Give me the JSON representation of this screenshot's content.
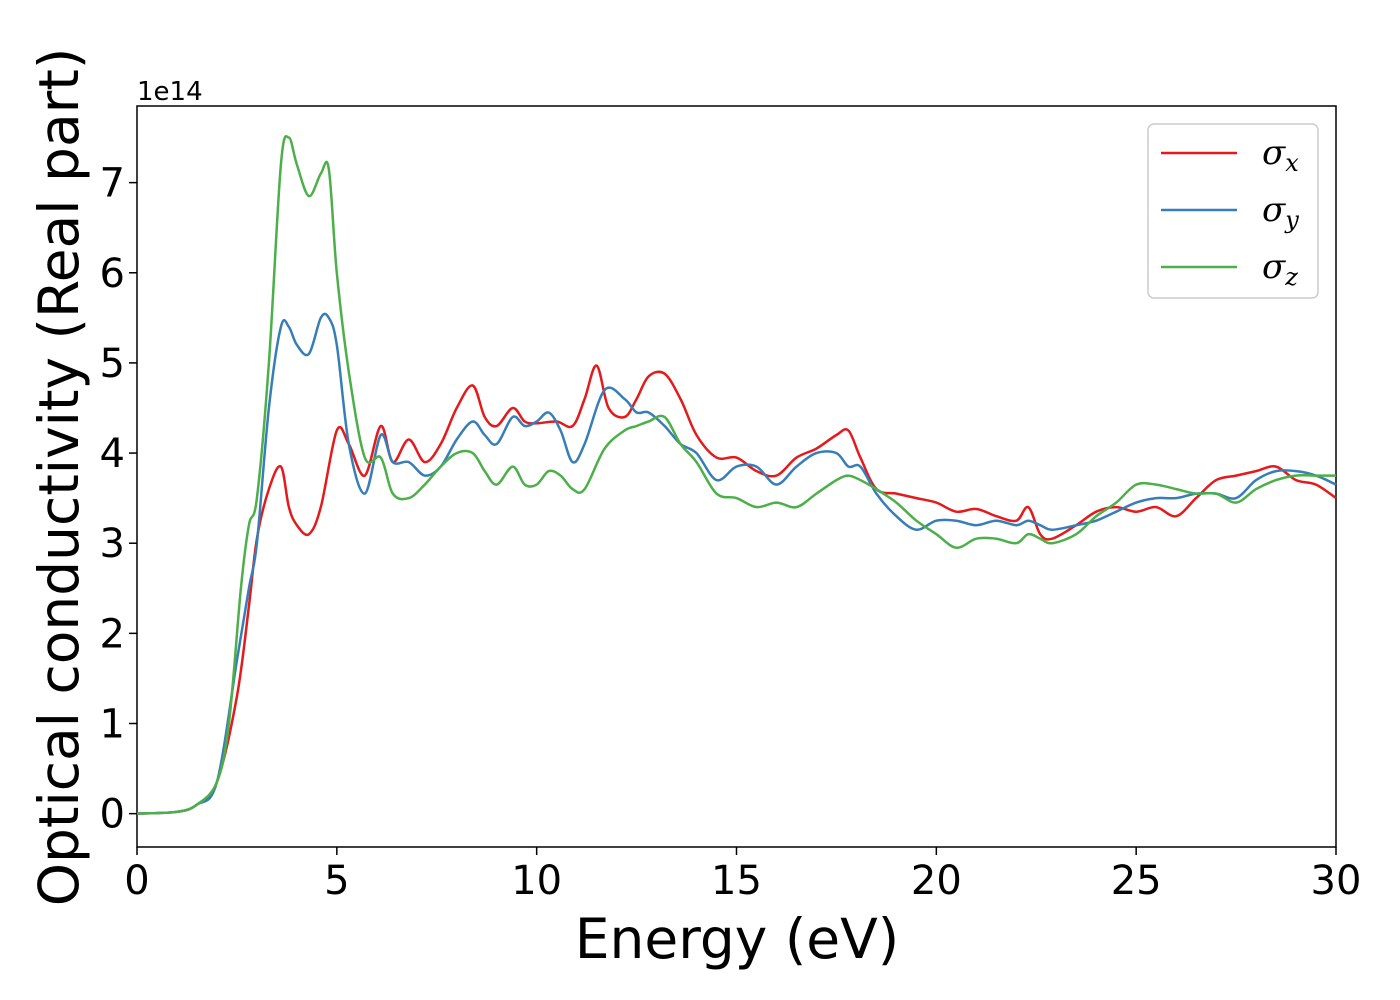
{
  "chart_data": {
    "type": "line",
    "title": "",
    "xlabel": "Energy (eV)",
    "ylabel": "Optical conductivity (Real part)",
    "y_offset_label": "1e14",
    "xlim": [
      0,
      30
    ],
    "ylim": [
      -0.37,
      7.85
    ],
    "x_ticks": [
      "0",
      "5",
      "10",
      "15",
      "20",
      "25",
      "30"
    ],
    "y_ticks": [
      "0",
      "1",
      "2",
      "3",
      "4",
      "5",
      "6",
      "7"
    ],
    "grid": false,
    "legend_position": "top-right",
    "series": [
      {
        "name": "σx",
        "symbol": "σ",
        "subscript": "x",
        "color": "#e41a1c",
        "x": [
          0,
          1,
          1.5,
          2,
          2.5,
          2.8,
          3,
          3.3,
          3.6,
          3.8,
          4.0,
          4.3,
          4.6,
          5.0,
          5.3,
          5.7,
          6.1,
          6.4,
          6.8,
          7.2,
          7.6,
          8.0,
          8.4,
          8.7,
          9.0,
          9.4,
          9.7,
          10.0,
          10.5,
          10.9,
          11.2,
          11.5,
          11.8,
          12.2,
          12.5,
          12.8,
          13.2,
          13.6,
          14.0,
          14.5,
          15.0,
          15.5,
          16.0,
          16.5,
          17.0,
          17.5,
          17.8,
          18.1,
          18.5,
          19.0,
          19.5,
          20.0,
          20.5,
          21.0,
          21.5,
          22.0,
          22.3,
          22.6,
          22.9,
          23.5,
          24.0,
          24.5,
          25.0,
          25.5,
          26.0,
          26.5,
          27.0,
          27.5,
          28.0,
          28.5,
          29.0,
          29.5,
          30.0
        ],
        "values": [
          0,
          0.02,
          0.1,
          0.35,
          1.3,
          2.3,
          3.05,
          3.6,
          3.85,
          3.4,
          3.2,
          3.1,
          3.4,
          4.25,
          4.1,
          3.75,
          4.3,
          3.9,
          4.15,
          3.9,
          4.1,
          4.5,
          4.75,
          4.4,
          4.3,
          4.5,
          4.35,
          4.33,
          4.35,
          4.3,
          4.6,
          4.97,
          4.5,
          4.4,
          4.6,
          4.85,
          4.88,
          4.6,
          4.2,
          3.95,
          3.95,
          3.8,
          3.75,
          3.95,
          4.05,
          4.2,
          4.25,
          3.95,
          3.6,
          3.55,
          3.5,
          3.45,
          3.35,
          3.38,
          3.3,
          3.25,
          3.4,
          3.1,
          3.05,
          3.2,
          3.35,
          3.4,
          3.35,
          3.4,
          3.3,
          3.5,
          3.7,
          3.75,
          3.8,
          3.85,
          3.7,
          3.65,
          3.5
        ]
      },
      {
        "name": "σy",
        "symbol": "σ",
        "subscript": "y",
        "color": "#377eb8",
        "x": [
          0,
          1,
          1.5,
          2,
          2.5,
          2.8,
          3.0,
          3.3,
          3.6,
          3.8,
          4.0,
          4.3,
          4.6,
          4.8,
          5.0,
          5.3,
          5.7,
          6.1,
          6.4,
          6.8,
          7.2,
          7.6,
          8.0,
          8.4,
          8.7,
          9.0,
          9.4,
          9.7,
          10.0,
          10.3,
          10.6,
          10.9,
          11.2,
          11.7,
          12.2,
          12.5,
          12.8,
          13.2,
          13.6,
          14.0,
          14.5,
          15.0,
          15.5,
          16.0,
          16.5,
          17.0,
          17.5,
          17.8,
          18.1,
          18.5,
          19.0,
          19.5,
          20.0,
          20.5,
          21.0,
          21.5,
          22.0,
          22.3,
          22.6,
          22.9,
          23.5,
          24.0,
          24.5,
          25.0,
          25.5,
          26.0,
          26.5,
          27.0,
          27.5,
          28.0,
          28.5,
          29.0,
          29.5,
          30.0
        ],
        "values": [
          0,
          0.02,
          0.1,
          0.35,
          1.7,
          2.5,
          3.0,
          4.5,
          5.4,
          5.4,
          5.2,
          5.1,
          5.5,
          5.5,
          5.2,
          4.1,
          3.55,
          4.2,
          3.9,
          3.9,
          3.75,
          3.85,
          4.15,
          4.35,
          4.2,
          4.1,
          4.4,
          4.3,
          4.35,
          4.45,
          4.25,
          3.9,
          4.1,
          4.7,
          4.6,
          4.45,
          4.45,
          4.3,
          4.1,
          4.0,
          3.7,
          3.85,
          3.85,
          3.65,
          3.85,
          4.0,
          4.0,
          3.85,
          3.85,
          3.55,
          3.3,
          3.15,
          3.25,
          3.25,
          3.2,
          3.25,
          3.2,
          3.25,
          3.2,
          3.15,
          3.2,
          3.25,
          3.35,
          3.45,
          3.5,
          3.5,
          3.55,
          3.55,
          3.5,
          3.7,
          3.8,
          3.8,
          3.75,
          3.65
        ]
      },
      {
        "name": "σz",
        "symbol": "σ",
        "subscript": "z",
        "color": "#4daf4a",
        "x": [
          0,
          1,
          1.5,
          2,
          2.3,
          2.6,
          2.8,
          3.0,
          3.3,
          3.6,
          3.8,
          4.0,
          4.3,
          4.6,
          4.8,
          5.0,
          5.3,
          5.7,
          6.1,
          6.4,
          6.8,
          7.2,
          7.6,
          8.0,
          8.4,
          8.7,
          9.0,
          9.4,
          9.7,
          10.0,
          10.3,
          10.6,
          10.9,
          11.2,
          11.7,
          12.2,
          12.5,
          12.8,
          13.2,
          13.6,
          14.0,
          14.5,
          15.0,
          15.5,
          16.0,
          16.5,
          17.0,
          17.5,
          17.8,
          18.1,
          18.5,
          19.0,
          19.5,
          20.0,
          20.5,
          21.0,
          21.5,
          22.0,
          22.3,
          22.6,
          22.9,
          23.5,
          24.0,
          24.5,
          25.0,
          25.5,
          26.0,
          26.5,
          27.0,
          27.5,
          28.0,
          28.5,
          29.0,
          29.5,
          30.0
        ],
        "values": [
          0,
          0.02,
          0.1,
          0.35,
          1.0,
          2.5,
          3.2,
          3.5,
          5.0,
          7.2,
          7.5,
          7.2,
          6.85,
          7.1,
          7.15,
          6.0,
          4.9,
          3.95,
          3.95,
          3.55,
          3.5,
          3.65,
          3.85,
          4.0,
          4.0,
          3.8,
          3.65,
          3.85,
          3.65,
          3.65,
          3.8,
          3.75,
          3.6,
          3.6,
          4.05,
          4.25,
          4.3,
          4.35,
          4.4,
          4.1,
          3.9,
          3.55,
          3.5,
          3.4,
          3.45,
          3.4,
          3.55,
          3.7,
          3.75,
          3.7,
          3.6,
          3.45,
          3.25,
          3.1,
          2.95,
          3.05,
          3.05,
          3.0,
          3.1,
          3.05,
          3.0,
          3.1,
          3.3,
          3.45,
          3.65,
          3.65,
          3.6,
          3.55,
          3.55,
          3.45,
          3.6,
          3.7,
          3.75,
          3.75,
          3.75
        ]
      }
    ]
  }
}
